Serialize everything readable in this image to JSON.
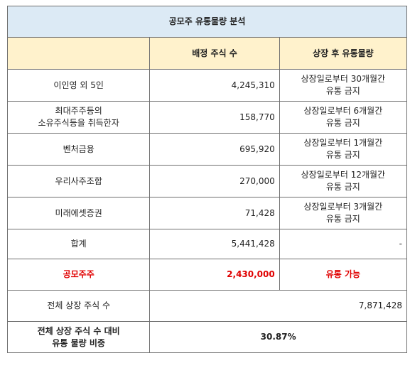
{
  "sheet": {
    "title": "공모주 유통물량 분석",
    "headers": [
      "",
      "배정 주식 수",
      "상장 후 유통물량"
    ],
    "rows": [
      {
        "name_lines": [
          "이인영 외 5인"
        ],
        "shares": "4,245,310",
        "lockup_lines": [
          "상장일로부터 30개월간",
          "유통 금지"
        ]
      },
      {
        "name_lines": [
          "최대주주등의",
          "소유주식등을 취득한자"
        ],
        "shares": "158,770",
        "lockup_lines": [
          "상장일로부터 6개월간",
          "유통 금지"
        ]
      },
      {
        "name_lines": [
          "벤처금융"
        ],
        "shares": "695,920",
        "lockup_lines": [
          "상장일로부터 1개월간",
          "유통 금지"
        ]
      },
      {
        "name_lines": [
          "우리사주조합"
        ],
        "shares": "270,000",
        "lockup_lines": [
          "상장일로부터 12개월간",
          "유통 금지"
        ]
      },
      {
        "name_lines": [
          "미래에셋증권"
        ],
        "shares": "71,428",
        "lockup_lines": [
          "상장일로부터 3개월간",
          "유통 금지"
        ]
      }
    ],
    "total": {
      "name": "합계",
      "shares": "5,441,428",
      "lockup": "-"
    },
    "ipo": {
      "name": "공모주주",
      "shares": "2,430,000",
      "lockup": "유통 가능",
      "color": "#e00000"
    },
    "listed": {
      "name": "전체 상장 주식 수",
      "shares": "7,871,428"
    },
    "ratio": {
      "name_lines": [
        "전체 상장 주식 수 대비",
        "유통 물량 비중"
      ],
      "value": "30.87%"
    },
    "colors": {
      "title_bg": "#dceaf5",
      "header_bg": "#fff2cc",
      "border": "#6f6f6f"
    }
  }
}
